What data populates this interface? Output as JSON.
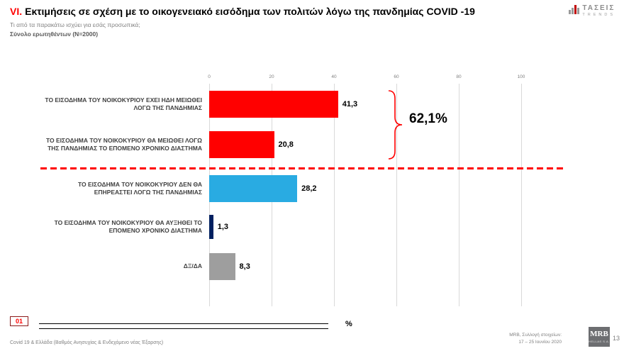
{
  "header": {
    "title_prefix": "VI.",
    "title": "Εκτιμήσεις σε σχέση με το οικογενειακό εισόδημα των πολιτών λόγω της πανδημίας COVID -19",
    "subtitle": "Τι από τα παρακάτω ισχύει για εσάς προσωπικά;",
    "sample": "Σύνολο ερωτηθέντων (N=2000)"
  },
  "brand": {
    "name": "ΤΑΣΕΙΣ",
    "sub": "TRENDS"
  },
  "chart_data": {
    "type": "bar",
    "orientation": "horizontal",
    "title": "",
    "xlabel": "%",
    "ylabel": "",
    "xlim": [
      0,
      100
    ],
    "ticks": [
      0,
      20,
      40,
      60,
      80,
      100
    ],
    "tick_labels": [
      "0",
      "20",
      "40",
      "60",
      "80",
      "100"
    ],
    "grid": true,
    "categories": [
      "ΤΟ ΕΙΣΟΔΗΜΑ ΤΟΥ ΝΟΙΚΟΚΥΡΙΟΥ ΕΧΕΙ ΗΔΗ ΜΕΙΩΘΕΙ ΛΟΓΩ ΤΗΣ ΠΑΝΔΗΜΙΑΣ",
      "ΤΟ ΕΙΣΟΔΗΜΑ ΤΟΥ ΝΟΙΚΟΚΥΡΙΟΥ ΘΑ ΜΕΙΩΘΕΙ ΛΟΓΩ ΤΗΣ ΠΑΝΔΗΜΙΑΣ ΤΟ ΕΠΟΜΕΝΟ ΧΡΟΝΙΚΟ ΔΙΑΣΤΗΜΑ",
      "ΤΟ ΕΙΣΟΔΗΜΑ ΤΟΥ ΝΟΙΚΟΚΥΡΙΟΥ ΔΕΝ ΘΑ ΕΠΗΡΕΑΣΤΕΙ ΛΟΓΩ ΤΗΣ ΠΑΝΔΗΜΙΑΣ",
      "ΤΟ ΕΙΣΟΔΗΜΑ ΤΟΥ ΝΟΙΚΟΚΥΡΙΟΥ ΘΑ ΑΥΞΗΘΕΙ ΤΟ ΕΠΟΜΕΝΟ ΧΡΟΝΙΚΟ ΔΙΑΣΤΗΜΑ",
      "ΔΞ/ΔΑ"
    ],
    "values": [
      41.3,
      20.8,
      28.2,
      1.3,
      8.3
    ],
    "value_labels": [
      "41,3",
      "20,8",
      "28,2",
      "1,3",
      "8,3"
    ],
    "colors": [
      "#ff0000",
      "#ff0000",
      "#29abe2",
      "#002060",
      "#9e9e9e"
    ],
    "annotation": {
      "text": "62,1%",
      "grouped_rows": [
        0,
        1
      ]
    },
    "separator": {
      "after_row": 1,
      "style": "red-dashed"
    }
  },
  "footer": {
    "slide_number": "01",
    "left_text": "Covid 19 & Ελλάδα (Βαθμός Ανησυχίας & Ενδεχόμενο νέας Έξαρσης)",
    "right_line1": "MRB, Συλλογή στοιχείων:",
    "right_line2": "17 – 25 Ιουνίου 2020",
    "page": "13",
    "mrb_logo": "MRB",
    "mrb_sub": "HELLAS S.A."
  }
}
